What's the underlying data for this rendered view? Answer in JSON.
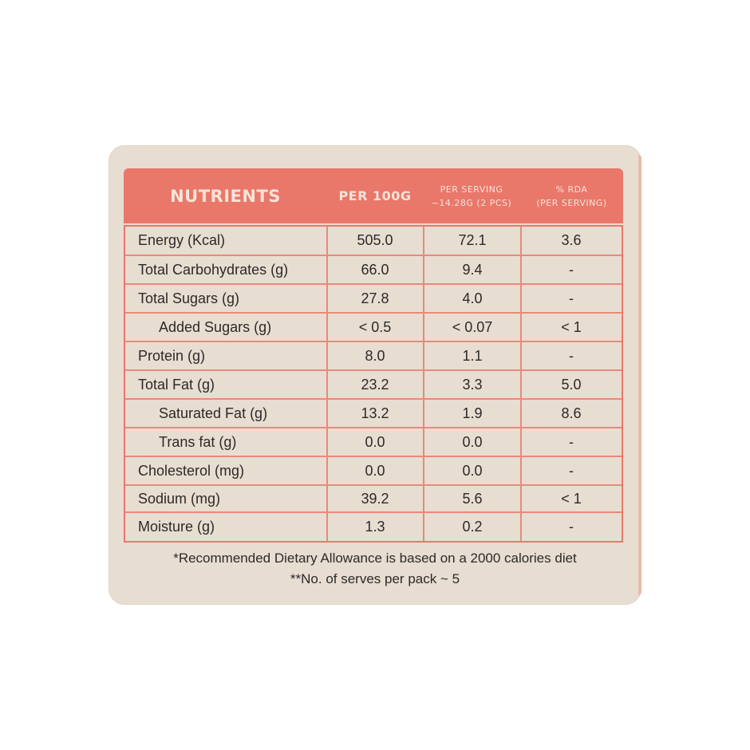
{
  "header": {
    "nutrients": "NUTRIENTS",
    "per_100g": "PER 100G",
    "per_serving_line1": "PER SERVING",
    "per_serving_line2": "~14.28G (2 PCS)",
    "rda_line1": "% RDA",
    "rda_line2": "(PER SERVING)"
  },
  "rows": [
    {
      "name": "Energy (Kcal)",
      "per_100g": "505.0",
      "per_serving": "72.1",
      "rda": "3.6"
    },
    {
      "name": "Total Carbohydrates (g)",
      "per_100g": "66.0",
      "per_serving": "9.4",
      "rda": "-"
    },
    {
      "name": "Total Sugars (g)",
      "per_100g": "27.8",
      "per_serving": "4.0",
      "rda": "-"
    },
    {
      "name": "Added Sugars (g)",
      "per_100g": "< 0.5",
      "per_serving": "< 0.07",
      "rda": "< 1"
    },
    {
      "name": "Protein (g)",
      "per_100g": "8.0",
      "per_serving": "1.1",
      "rda": "-"
    },
    {
      "name": "Total Fat (g)",
      "per_100g": "23.2",
      "per_serving": "3.3",
      "rda": "5.0"
    },
    {
      "name": "Saturated Fat (g)",
      "per_100g": "13.2",
      "per_serving": "1.9",
      "rda": "8.6"
    },
    {
      "name": "Trans fat (g)",
      "per_100g": "0.0",
      "per_serving": "0.0",
      "rda": "-"
    },
    {
      "name": "Cholesterol (mg)",
      "per_100g": "0.0",
      "per_serving": "0.0",
      "rda": "-"
    },
    {
      "name": "Sodium (mg)",
      "per_100g": "39.2",
      "per_serving": "5.6",
      "rda": "< 1"
    },
    {
      "name": "Moisture (g)",
      "per_100g": "1.3",
      "per_serving": "0.2",
      "rda": "-"
    }
  ],
  "footnotes": {
    "rda_note": "*Recommended Dietary Allowance is based on a 2000 calories diet",
    "serves_note": "**No. of serves per pack ~ 5"
  },
  "colors": {
    "header_bg": "#e9786a",
    "card_bg": "#e8ddd1",
    "grid_line": "#e9897b"
  }
}
